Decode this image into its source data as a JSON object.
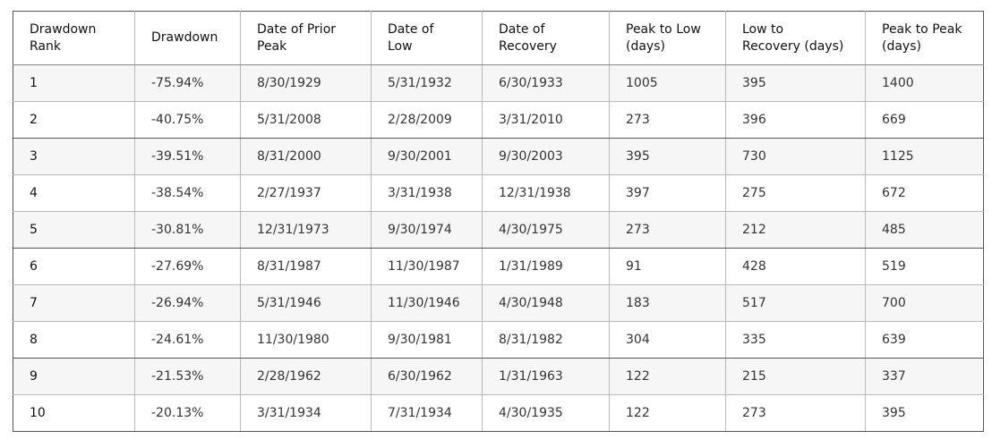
{
  "table": {
    "headers": [
      "Drawdown\nRank",
      "Drawdown",
      "Date of Prior\nPeak",
      "Date of\nLow",
      "Date of\nRecovery",
      "Peak to Low\n(days)",
      "Low to\nRecovery (days)",
      "Peak to Peak\n(days)"
    ],
    "rows": [
      [
        "1",
        "-75.94%",
        "8/30/1929",
        "5/31/1932",
        "6/30/1933",
        "1005",
        "395",
        "1400"
      ],
      [
        "2",
        "-40.75%",
        "5/31/2008",
        "2/28/2009",
        "3/31/2010",
        "273",
        "396",
        "669"
      ],
      [
        "3",
        "-39.51%",
        "8/31/2000",
        "9/30/2001",
        "9/30/2003",
        "395",
        "730",
        "1125"
      ],
      [
        "4",
        "-38.54%",
        "2/27/1937",
        "3/31/1938",
        "12/31/1938",
        "397",
        "275",
        "672"
      ],
      [
        "5",
        "-30.81%",
        "12/31/1973",
        "9/30/1974",
        "4/30/1975",
        "273",
        "212",
        "485"
      ],
      [
        "6",
        "-27.69%",
        "8/31/1987",
        "11/30/1987",
        "1/31/1989",
        "91",
        "428",
        "519"
      ],
      [
        "7",
        "-26.94%",
        "5/31/1946",
        "11/30/1946",
        "4/30/1948",
        "183",
        "517",
        "700"
      ],
      [
        "8",
        "-24.61%",
        "11/30/1980",
        "9/30/1981",
        "8/31/1982",
        "304",
        "335",
        "639"
      ],
      [
        "9",
        "-21.53%",
        "2/28/1962",
        "6/30/1962",
        "1/31/1963",
        "122",
        "215",
        "337"
      ],
      [
        "10",
        "-20.13%",
        "3/31/1934",
        "7/31/1934",
        "4/30/1935",
        "122",
        "273",
        "395"
      ]
    ]
  }
}
